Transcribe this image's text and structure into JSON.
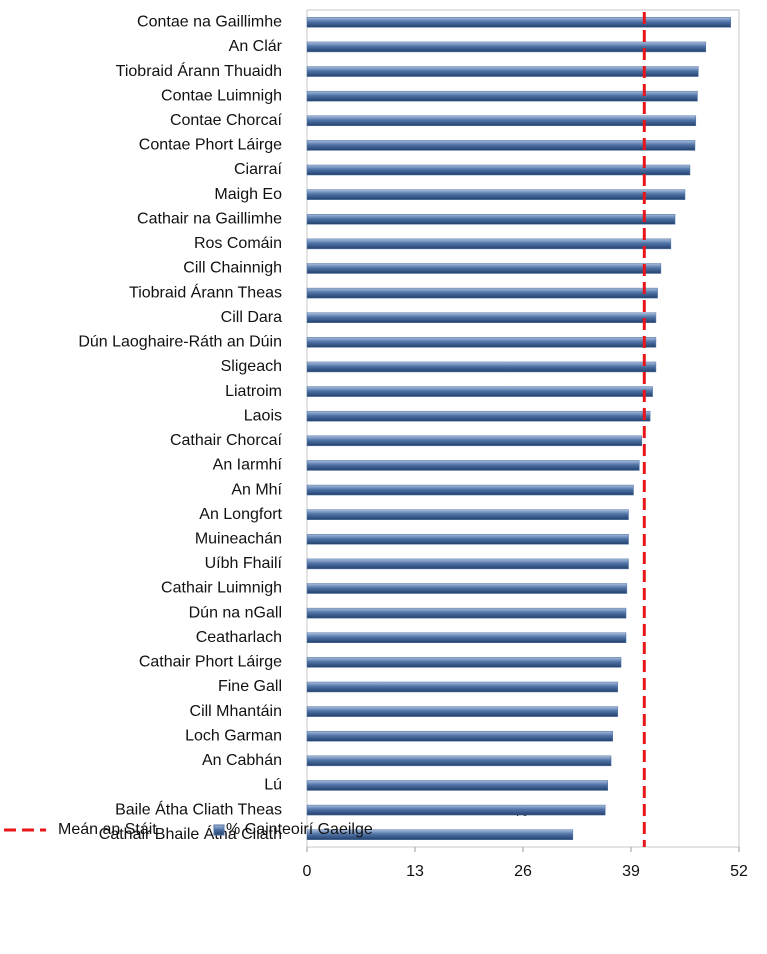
{
  "chart_data": {
    "type": "barh",
    "categories": [
      "Contae na Gaillimhe",
      "An Clár",
      "Tiobraid Árann Thuaidh",
      "Contae Luimnigh",
      "Contae Chorcaí",
      "Contae Phort Láirge",
      "Ciarraí",
      "Maigh Eo",
      "Cathair na Gaillimhe",
      "Ros Comáin",
      "Cill Chainnigh",
      "Tiobraid Árann Theas",
      "Cill Dara",
      "Dún Laoghaire-Ráth an Dúin",
      "Sligeach",
      "Liatroim",
      "Laois",
      "Cathair Chorcaí",
      "An Iarmhí",
      "An Mhí",
      "An Longfort",
      "Muineachán",
      "Uíbh Fhailí",
      "Cathair Luimnigh",
      "Dún na nGall",
      "Ceatharlach",
      "Cathair Phort Láirge",
      "Fine Gall",
      "Cill Mhantáin",
      "Loch Garman",
      "An Cabhán",
      "Lú",
      "Baile Átha Cliath Theas",
      "Cathair Bhaile Átha Cliath"
    ],
    "series": [
      {
        "name": "% Cainteoirí Gaeilge",
        "color": "#4f73a6",
        "values": [
          51.0,
          48.0,
          47.1,
          47.0,
          46.8,
          46.7,
          46.1,
          45.5,
          44.3,
          43.8,
          42.6,
          42.2,
          42.0,
          42.0,
          42.0,
          41.6,
          41.3,
          40.3,
          40.0,
          39.3,
          38.7,
          38.7,
          38.7,
          38.5,
          38.4,
          38.4,
          37.8,
          37.4,
          37.4,
          36.8,
          36.6,
          36.2,
          35.9,
          32.0
        ]
      }
    ],
    "reference_line": {
      "name": "Meán an Stáit",
      "value": 40.6,
      "color": "#e8151b"
    },
    "xlabel": "%",
    "xlim": [
      0,
      52
    ],
    "xticks": [
      0,
      13,
      26,
      39,
      52
    ]
  }
}
